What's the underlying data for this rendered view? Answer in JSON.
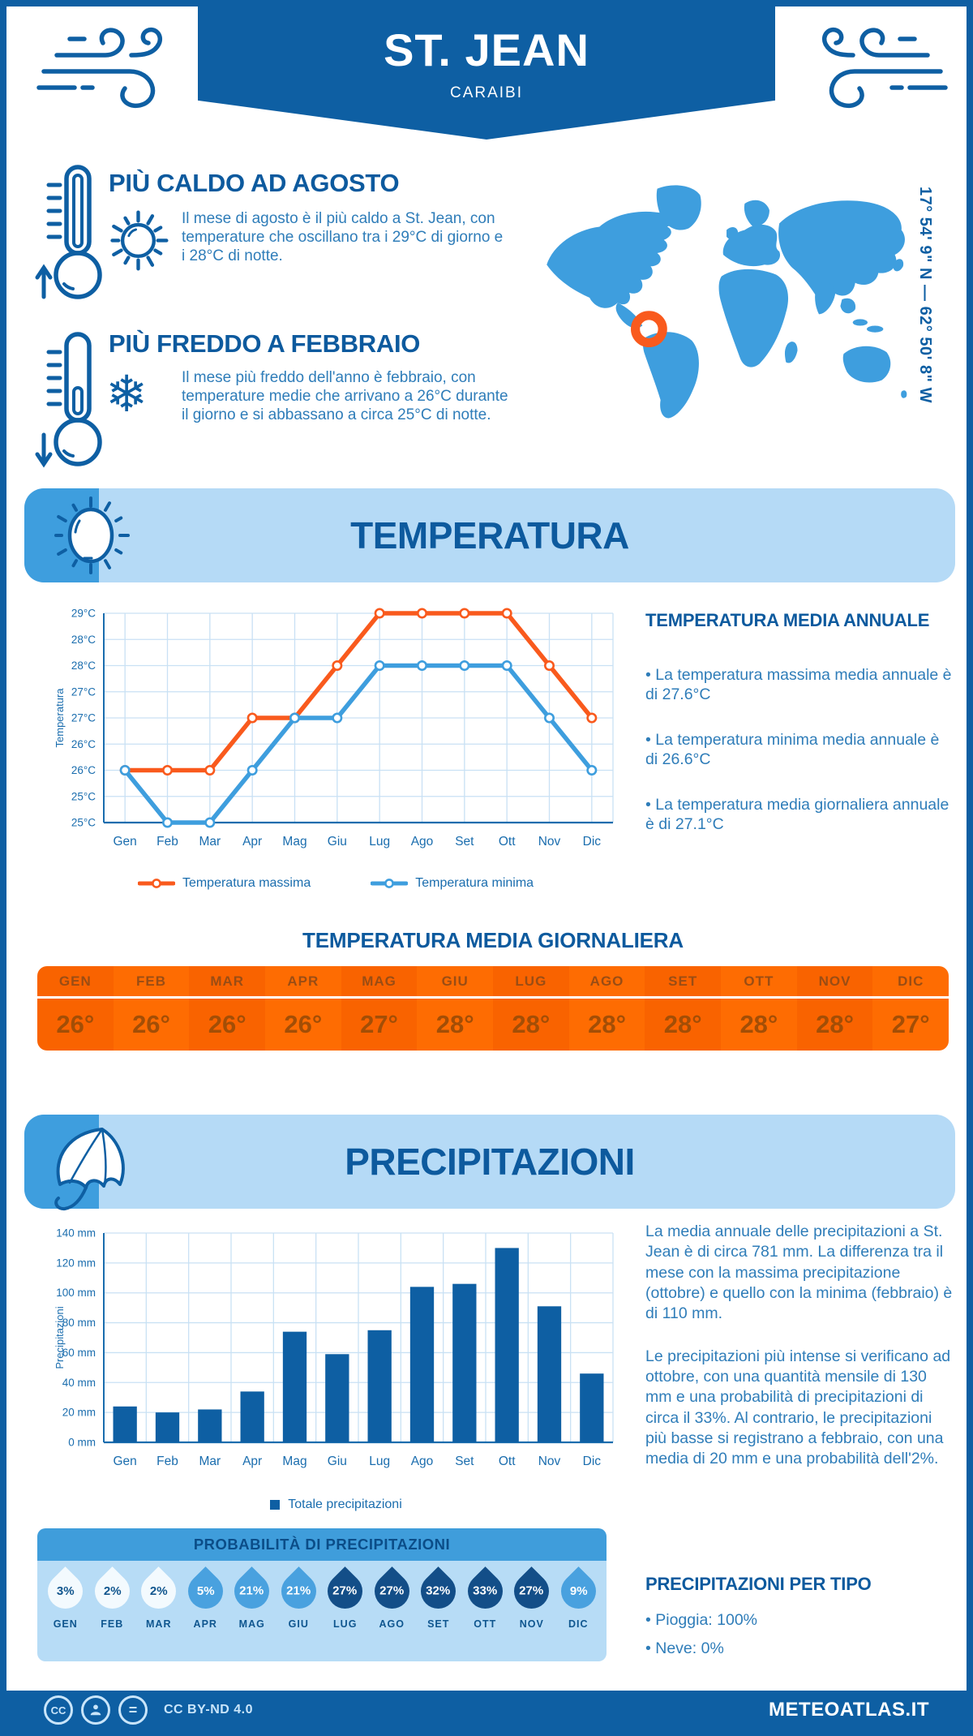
{
  "colors": {
    "primary": "#0e5fa3",
    "medium_blue": "#3e9ede",
    "light_blue": "#b5daf6",
    "accent_orange": "#f95a1d",
    "table_orange": "#f96300",
    "droplet_dark": "#134e88",
    "droplet_mid": "#49a1df",
    "droplet_light": "#f3fafe"
  },
  "icons": {
    "snowflake_glyph": "❄"
  },
  "header": {
    "title": "ST. JEAN",
    "subtitle": "CARAIBI"
  },
  "map": {
    "coordinates": "17° 54' 9\" N — 62° 50' 8\" W"
  },
  "highlights": {
    "hot": {
      "title": "PIÙ CALDO AD AGOSTO",
      "text": "Il mese di agosto è il più caldo a St. Jean, con temperature che oscillano tra i 29°C di giorno e i 28°C di notte."
    },
    "cold": {
      "title": "PIÙ FREDDO A FEBBRAIO",
      "text": "Il mese più freddo dell'anno è febbraio, con temperature medie che arrivano a 26°C durante il giorno e si abbassano a circa 25°C di notte."
    }
  },
  "temperature": {
    "band_title": "TEMPERATURA",
    "annual": {
      "title": "TEMPERATURA MEDIA ANNUALE",
      "bullets": [
        "• La temperatura massima media annuale è di 27.6°C",
        "• La temperatura minima media annuale è di 26.6°C",
        "• La temperatura media giornaliera annuale è di 27.1°C"
      ]
    },
    "daily_title": "TEMPERATURA MEDIA GIORNALIERA",
    "table": {
      "months": [
        "GEN",
        "FEB",
        "MAR",
        "APR",
        "MAG",
        "GIU",
        "LUG",
        "AGO",
        "SET",
        "OTT",
        "NOV",
        "DIC"
      ],
      "values": [
        "26°",
        "26°",
        "26°",
        "26°",
        "27°",
        "28°",
        "28°",
        "28°",
        "28°",
        "28°",
        "28°",
        "27°"
      ]
    }
  },
  "precipitation": {
    "band_title": "PRECIPITAZIONI",
    "paragraphs": [
      "La media annuale delle precipitazioni a St. Jean è di circa 781 mm. La differenza tra il mese con la massima precipitazione (ottobre) e quello con la minima (febbraio) è di 110 mm.",
      "Le precipitazioni più intense si verificano ad ottobre, con una quantità mensile di 130 mm e una probabilità di precipitazioni di circa il 33%. Al contrario, le precipitazioni più basse si registrano a febbraio, con una media di 20 mm e una probabilità dell'2%."
    ],
    "probability": {
      "title": "PROBABILITÀ DI PRECIPITAZIONI",
      "months": [
        "GEN",
        "FEB",
        "MAR",
        "APR",
        "MAG",
        "GIU",
        "LUG",
        "AGO",
        "SET",
        "OTT",
        "NOV",
        "DIC"
      ],
      "values": [
        "3%",
        "2%",
        "2%",
        "5%",
        "21%",
        "21%",
        "27%",
        "27%",
        "32%",
        "33%",
        "27%",
        "9%"
      ],
      "levels": [
        "light",
        "light",
        "light",
        "mid",
        "mid",
        "mid",
        "dark",
        "dark",
        "dark",
        "dark",
        "dark",
        "mid"
      ]
    },
    "by_type": {
      "title": "PRECIPITAZIONI PER TIPO",
      "bullets": [
        "• Pioggia: 100%",
        "• Neve: 0%"
      ]
    }
  },
  "footer": {
    "license": "CC BY-ND 4.0",
    "brand": "METEOATLAS.IT"
  },
  "chart_data": [
    {
      "id": "temperature",
      "type": "line",
      "title": "Temperatura massima e minima mensile",
      "categories": [
        "Gen",
        "Feb",
        "Mar",
        "Apr",
        "Mag",
        "Giu",
        "Lug",
        "Ago",
        "Set",
        "Ott",
        "Nov",
        "Dic"
      ],
      "series": [
        {
          "name": "Temperatura massima",
          "color": "#f95a1d",
          "values": [
            26,
            26,
            26,
            27,
            27,
            28,
            29,
            29,
            29,
            29,
            28,
            27
          ]
        },
        {
          "name": "Temperatura minima",
          "color": "#3e9ede",
          "values": [
            26,
            25,
            25,
            26,
            27,
            27,
            28,
            28,
            28,
            28,
            27,
            26
          ]
        }
      ],
      "xlabel": "",
      "ylabel": "Temperatura",
      "ylim": [
        25,
        29
      ],
      "ytick_step": 0.5,
      "ytick_suffix": "°C",
      "ytick_format": "floor",
      "grid": true,
      "legend_position": "bottom"
    },
    {
      "id": "precipitation",
      "type": "bar",
      "title": "Totale precipitazioni mensili (mm)",
      "categories": [
        "Gen",
        "Feb",
        "Mar",
        "Apr",
        "Mag",
        "Giu",
        "Lug",
        "Ago",
        "Set",
        "Ott",
        "Nov",
        "Dic"
      ],
      "series": [
        {
          "name": "Totale precipitazioni",
          "color": "#0e5fa3",
          "values": [
            24,
            20,
            22,
            34,
            74,
            59,
            75,
            104,
            106,
            130,
            91,
            46
          ]
        }
      ],
      "xlabel": "",
      "ylabel": "Precipitazioni",
      "ylim": [
        0,
        140
      ],
      "ytick_step": 20,
      "ytick_suffix": " mm",
      "ytick_format": "plain",
      "grid": true,
      "legend_position": "bottom"
    }
  ]
}
